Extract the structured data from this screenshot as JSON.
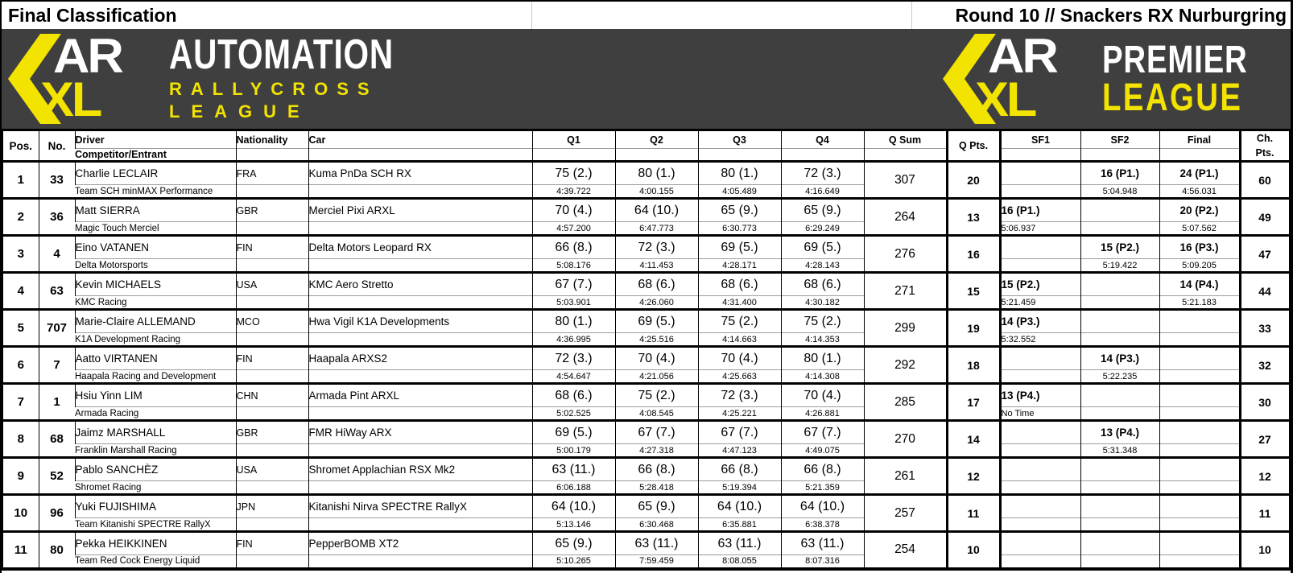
{
  "titles": {
    "left": "Final Classification",
    "right": "Round 10 // Snackers RX Nurburgring"
  },
  "logos": {
    "left": {
      "mark_top": "AR",
      "mark_bottom": "XL",
      "line1": "AUTOMATION",
      "line2": "RALLYCROSS",
      "line3": "LEAGUE"
    },
    "right": {
      "mark_top": "AR",
      "mark_bottom": "XL",
      "line1": "PREMIER",
      "line2": "LEAGUE"
    }
  },
  "colors": {
    "band_background": "#3F3F3F",
    "accent_yellow": "#F3E300",
    "text": "#000000",
    "grid_thin": "#9C9C9C"
  },
  "table": {
    "headers": {
      "pos": "Pos.",
      "no": "No.",
      "driver": "Driver",
      "entrant": "Competitor/Entrant",
      "nationality": "Nationality",
      "car": "Car",
      "q1": "Q1",
      "q2": "Q2",
      "q3": "Q3",
      "q4": "Q4",
      "qsum": "Q Sum",
      "qpts": "Q Pts.",
      "sf1": "SF1",
      "sf2": "SF2",
      "final": "Final",
      "chpts_line1": "Ch.",
      "chpts_line2": "Pts."
    },
    "rows": [
      {
        "pos": "1",
        "no": "33",
        "driver": "Charlie LECLAIR",
        "entrant": "Team SCH minMAX Performance",
        "nat": "FRA",
        "car": "Kuma PnDa SCH RX",
        "q": [
          {
            "score": "75 (2.)",
            "time": "4:39.722"
          },
          {
            "score": "80 (1.)",
            "time": "4:00.155"
          },
          {
            "score": "80 (1.)",
            "time": "4:05.489"
          },
          {
            "score": "72 (3.)",
            "time": "4:16.649"
          }
        ],
        "qsum": "307",
        "qpts": "20",
        "sf1": {
          "score": "",
          "time": ""
        },
        "sf2": {
          "score": "16 (P1.)",
          "time": "5:04.948"
        },
        "final": {
          "score": "24 (P1.)",
          "time": "4:56.031"
        },
        "chpts": "60"
      },
      {
        "pos": "2",
        "no": "36",
        "driver": "Matt SIERRA",
        "entrant": "Magic Touch Merciel",
        "nat": "GBR",
        "car": "Merciel Pixi ARXL",
        "q": [
          {
            "score": "70 (4.)",
            "time": "4:57.200"
          },
          {
            "score": "64 (10.)",
            "time": "6:47.773"
          },
          {
            "score": "65 (9.)",
            "time": "6:30.773"
          },
          {
            "score": "65 (9.)",
            "time": "6:29.249"
          }
        ],
        "qsum": "264",
        "qpts": "13",
        "sf1": {
          "score": "16 (P1.)",
          "time": "5:06.937"
        },
        "sf2": {
          "score": "",
          "time": ""
        },
        "final": {
          "score": "20 (P2.)",
          "time": "5:07.562"
        },
        "chpts": "49"
      },
      {
        "pos": "3",
        "no": "4",
        "driver": "Eino VATANEN",
        "entrant": "Delta Motorsports",
        "nat": "FIN",
        "car": "Delta Motors Leopard RX",
        "q": [
          {
            "score": "66 (8.)",
            "time": "5:08.176"
          },
          {
            "score": "72 (3.)",
            "time": "4:11.453"
          },
          {
            "score": "69 (5.)",
            "time": "4:28.171"
          },
          {
            "score": "69 (5.)",
            "time": "4:28.143"
          }
        ],
        "qsum": "276",
        "qpts": "16",
        "sf1": {
          "score": "",
          "time": ""
        },
        "sf2": {
          "score": "15 (P2.)",
          "time": "5:19.422"
        },
        "final": {
          "score": "16 (P3.)",
          "time": "5:09.205"
        },
        "chpts": "47"
      },
      {
        "pos": "4",
        "no": "63",
        "driver": "Kevin MICHAELS",
        "entrant": "KMC Racing",
        "nat": "USA",
        "car": "KMC Aero Stretto",
        "q": [
          {
            "score": "67 (7.)",
            "time": "5:03.901"
          },
          {
            "score": "68 (6.)",
            "time": "4:26.060"
          },
          {
            "score": "68 (6.)",
            "time": "4:31.400"
          },
          {
            "score": "68 (6.)",
            "time": "4:30.182"
          }
        ],
        "qsum": "271",
        "qpts": "15",
        "sf1": {
          "score": "15 (P2.)",
          "time": "5:21.459"
        },
        "sf2": {
          "score": "",
          "time": ""
        },
        "final": {
          "score": "14 (P4.)",
          "time": "5:21.183"
        },
        "chpts": "44"
      },
      {
        "pos": "5",
        "no": "707",
        "driver": "Marie-Claire ALLEMAND",
        "entrant": "K1A Development Racing",
        "nat": "MCO",
        "car": "Hwa Vigil K1A Developments",
        "q": [
          {
            "score": "80 (1.)",
            "time": "4:36.995"
          },
          {
            "score": "69 (5.)",
            "time": "4:25.516"
          },
          {
            "score": "75 (2.)",
            "time": "4:14.663"
          },
          {
            "score": "75 (2.)",
            "time": "4:14.353"
          }
        ],
        "qsum": "299",
        "qpts": "19",
        "sf1": {
          "score": "14 (P3.)",
          "time": "5:32.552"
        },
        "sf2": {
          "score": "",
          "time": ""
        },
        "final": {
          "score": "",
          "time": ""
        },
        "chpts": "33"
      },
      {
        "pos": "6",
        "no": "7",
        "driver": "Aatto VIRTANEN",
        "entrant": "Haapala Racing and Development",
        "nat": "FIN",
        "car": "Haapala ARXS2",
        "q": [
          {
            "score": "72 (3.)",
            "time": "4:54.647"
          },
          {
            "score": "70 (4.)",
            "time": "4:21.056"
          },
          {
            "score": "70 (4.)",
            "time": "4:25.663"
          },
          {
            "score": "80 (1.)",
            "time": "4:14.308"
          }
        ],
        "qsum": "292",
        "qpts": "18",
        "sf1": {
          "score": "",
          "time": ""
        },
        "sf2": {
          "score": "14 (P3.)",
          "time": "5:22.235"
        },
        "final": {
          "score": "",
          "time": ""
        },
        "chpts": "32"
      },
      {
        "pos": "7",
        "no": "1",
        "driver": "Hsiu Yinn LIM",
        "entrant": "Armada Racing",
        "nat": "CHN",
        "car": "Armada Pint ARXL",
        "q": [
          {
            "score": "68 (6.)",
            "time": "5:02.525"
          },
          {
            "score": "75 (2.)",
            "time": "4:08.545"
          },
          {
            "score": "72 (3.)",
            "time": "4:25.221"
          },
          {
            "score": "70 (4.)",
            "time": "4:26.881"
          }
        ],
        "qsum": "285",
        "qpts": "17",
        "sf1": {
          "score": "13 (P4.)",
          "time": "No Time"
        },
        "sf2": {
          "score": "",
          "time": ""
        },
        "final": {
          "score": "",
          "time": ""
        },
        "chpts": "30"
      },
      {
        "pos": "8",
        "no": "68",
        "driver": "Jaimz MARSHALL",
        "entrant": "Franklin Marshall Racing",
        "nat": "GBR",
        "car": "FMR HiWay ARX",
        "q": [
          {
            "score": "69 (5.)",
            "time": "5:00.179"
          },
          {
            "score": "67 (7.)",
            "time": "4:27.318"
          },
          {
            "score": "67 (7.)",
            "time": "4:47.123"
          },
          {
            "score": "67 (7.)",
            "time": "4:49.075"
          }
        ],
        "qsum": "270",
        "qpts": "14",
        "sf1": {
          "score": "",
          "time": ""
        },
        "sf2": {
          "score": "13 (P4.)",
          "time": "5:31.348"
        },
        "final": {
          "score": "",
          "time": ""
        },
        "chpts": "27"
      },
      {
        "pos": "9",
        "no": "52",
        "driver": "Pablo SANCHÈZ",
        "entrant": "Shromet Racing",
        "nat": "USA",
        "car": "Shromet Applachian RSX Mk2",
        "q": [
          {
            "score": "63 (11.)",
            "time": "6:06.188"
          },
          {
            "score": "66 (8.)",
            "time": "5:28.418"
          },
          {
            "score": "66 (8.)",
            "time": "5:19.394"
          },
          {
            "score": "66 (8.)",
            "time": "5:21.359"
          }
        ],
        "qsum": "261",
        "qpts": "12",
        "sf1": {
          "score": "",
          "time": ""
        },
        "sf2": {
          "score": "",
          "time": ""
        },
        "final": {
          "score": "",
          "time": ""
        },
        "chpts": "12"
      },
      {
        "pos": "10",
        "no": "96",
        "driver": "Yuki FUJISHIMA",
        "entrant": "Team Kitanishi SPECTRE RallyX",
        "nat": "JPN",
        "car": "Kitanishi Nirva SPECTRE RallyX",
        "q": [
          {
            "score": "64 (10.)",
            "time": "5:13.146"
          },
          {
            "score": "65 (9.)",
            "time": "6:30.468"
          },
          {
            "score": "64 (10.)",
            "time": "6:35.881"
          },
          {
            "score": "64 (10.)",
            "time": "6:38.378"
          }
        ],
        "qsum": "257",
        "qpts": "11",
        "sf1": {
          "score": "",
          "time": ""
        },
        "sf2": {
          "score": "",
          "time": ""
        },
        "final": {
          "score": "",
          "time": ""
        },
        "chpts": "11"
      },
      {
        "pos": "11",
        "no": "80",
        "driver": "Pekka HEIKKINEN",
        "entrant": "Team Red Cock Energy Liquid",
        "nat": "FIN",
        "car": "PepperBOMB XT2",
        "q": [
          {
            "score": "65 (9.)",
            "time": "5:10.265"
          },
          {
            "score": "63 (11.)",
            "time": "7:59.459"
          },
          {
            "score": "63 (11.)",
            "time": "8:08.055"
          },
          {
            "score": "63 (11.)",
            "time": "8:07.316"
          }
        ],
        "qsum": "254",
        "qpts": "10",
        "sf1": {
          "score": "",
          "time": ""
        },
        "sf2": {
          "score": "",
          "time": ""
        },
        "final": {
          "score": "",
          "time": ""
        },
        "chpts": "10"
      }
    ]
  }
}
